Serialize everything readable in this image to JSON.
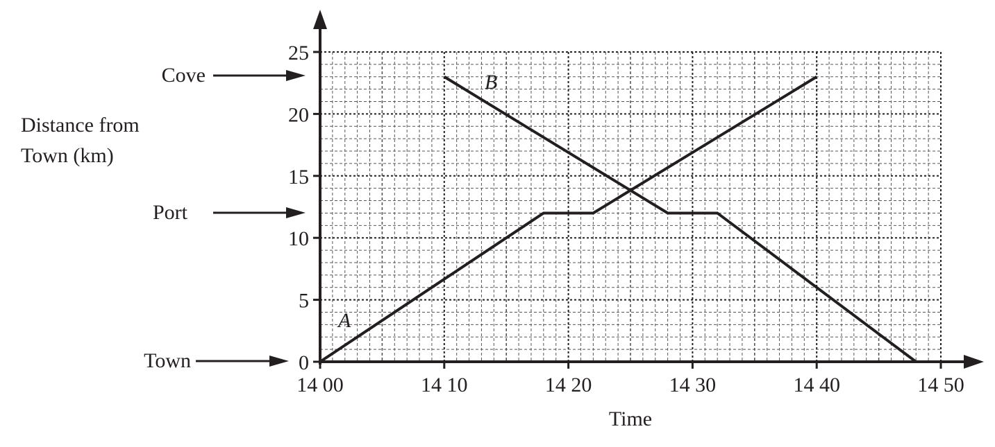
{
  "chart_data": {
    "type": "line",
    "title": "",
    "xlabel": "Time",
    "ylabel": "Distance from Town (km)",
    "ylabel_lines": [
      "Distance from",
      "Town (km)"
    ],
    "xlim": [
      0,
      50
    ],
    "ylim": [
      0,
      25
    ],
    "x_unit": "minutes after 14 00",
    "x_ticks": [
      {
        "value": 0,
        "label": "14 00"
      },
      {
        "value": 10,
        "label": "14 10"
      },
      {
        "value": 20,
        "label": "14 20"
      },
      {
        "value": 30,
        "label": "14 30"
      },
      {
        "value": 40,
        "label": "14 40"
      },
      {
        "value": 50,
        "label": "14 50"
      }
    ],
    "y_ticks": [
      {
        "value": 0,
        "label": "0"
      },
      {
        "value": 5,
        "label": "5"
      },
      {
        "value": 10,
        "label": "10"
      },
      {
        "value": 15,
        "label": "15"
      },
      {
        "value": 20,
        "label": "20"
      },
      {
        "value": 25,
        "label": "25"
      }
    ],
    "grid": {
      "on": true,
      "minor_x_step": 1,
      "minor_y_step": 1,
      "major_x_step": 5,
      "major_y_step": 5,
      "style": "dashed"
    },
    "legend": "none (series labelled inline)",
    "series": [
      {
        "name": "A",
        "points": [
          {
            "x": 0,
            "time": "14 00",
            "y": 0
          },
          {
            "x": 18,
            "time": "14 18",
            "y": 12
          },
          {
            "x": 22,
            "time": "14 22",
            "y": 12
          },
          {
            "x": 40,
            "time": "14 40",
            "y": 23
          }
        ],
        "label_pos": {
          "x": 2,
          "y": 3.3
        }
      },
      {
        "name": "B",
        "points": [
          {
            "x": 10,
            "time": "14 10",
            "y": 23
          },
          {
            "x": 28,
            "time": "14 28",
            "y": 12
          },
          {
            "x": 32,
            "time": "14 32",
            "y": 12
          },
          {
            "x": 48,
            "time": "14 48",
            "y": 0
          }
        ],
        "label_pos": {
          "x": 14,
          "y": 22.5
        }
      }
    ],
    "annotations": [
      {
        "text": "Cove",
        "y": 23,
        "arrow": true
      },
      {
        "text": "Port",
        "y": 12,
        "arrow": true
      },
      {
        "text": "Town",
        "y": 0,
        "arrow": true
      }
    ]
  },
  "labels": {
    "cove": "Cove",
    "port": "Port",
    "town": "Town",
    "ylabel_1": "Distance from",
    "ylabel_2": "Town (km)",
    "xlabel": "Time",
    "series_a": "A",
    "series_b": "B"
  },
  "colors": {
    "ink": "#231f20",
    "grid": "#555555"
  }
}
